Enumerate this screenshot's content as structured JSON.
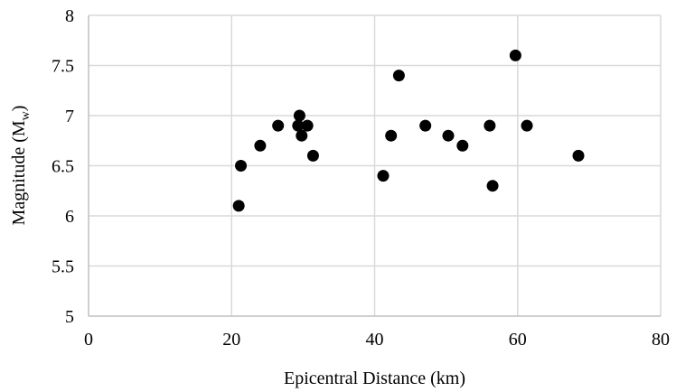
{
  "chart_data": {
    "type": "scatter",
    "title": "",
    "xlabel": "Epicentral Distance (km)",
    "ylabel_main": "Magnitude (M",
    "ylabel_sub": "w",
    "ylabel_close": ")",
    "xlim": [
      0,
      80
    ],
    "ylim": [
      5,
      8
    ],
    "xticks": [
      0,
      20,
      40,
      60,
      80
    ],
    "yticks": [
      5,
      5.5,
      6,
      6.5,
      7,
      7.5,
      8
    ],
    "ytick_labels": [
      "5",
      "5.5",
      "6",
      "6.5",
      "7",
      "7.5",
      "8"
    ],
    "xtick_labels": [
      "0",
      "20",
      "40",
      "60",
      "80"
    ],
    "grid": "vertical-and-horizontal",
    "marker_color": "#000000",
    "points": [
      {
        "x": 21.0,
        "y": 6.1
      },
      {
        "x": 21.3,
        "y": 6.5
      },
      {
        "x": 24.0,
        "y": 6.7
      },
      {
        "x": 26.5,
        "y": 6.9
      },
      {
        "x": 29.3,
        "y": 6.9
      },
      {
        "x": 29.5,
        "y": 7.0
      },
      {
        "x": 29.8,
        "y": 6.8
      },
      {
        "x": 30.6,
        "y": 6.9
      },
      {
        "x": 31.4,
        "y": 6.6
      },
      {
        "x": 41.2,
        "y": 6.4
      },
      {
        "x": 42.3,
        "y": 6.8
      },
      {
        "x": 43.4,
        "y": 7.4
      },
      {
        "x": 47.1,
        "y": 6.9
      },
      {
        "x": 50.3,
        "y": 6.8
      },
      {
        "x": 52.3,
        "y": 6.7
      },
      {
        "x": 56.1,
        "y": 6.9
      },
      {
        "x": 56.5,
        "y": 6.3
      },
      {
        "x": 59.7,
        "y": 7.6
      },
      {
        "x": 61.3,
        "y": 6.9
      },
      {
        "x": 68.5,
        "y": 6.6
      }
    ]
  }
}
